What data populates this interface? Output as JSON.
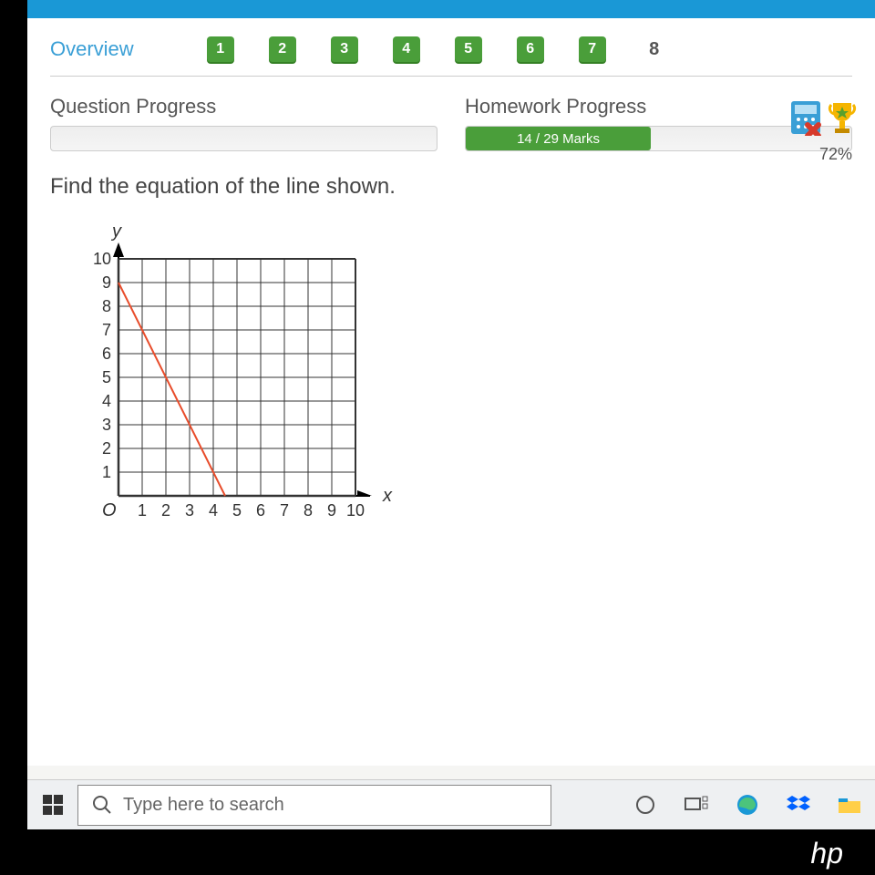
{
  "nav": {
    "overview": "Overview",
    "questions": [
      "1",
      "2",
      "3",
      "4",
      "5",
      "6",
      "7"
    ],
    "current": "8"
  },
  "progress": {
    "question_label": "Question Progress",
    "homework_label": "Homework Progress",
    "marks_text": "14 / 29 Marks",
    "marks_percent": 48,
    "reward_percent": "72%"
  },
  "question": {
    "text": "Find the equation of the line shown."
  },
  "chart": {
    "type": "line",
    "x_label": "x",
    "y_label": "y",
    "origin_label": "O",
    "xlim": [
      0,
      10
    ],
    "ylim": [
      0,
      10
    ],
    "xtick_labels": [
      "1",
      "2",
      "3",
      "4",
      "5",
      "6",
      "7",
      "8",
      "9",
      "10"
    ],
    "ytick_labels": [
      "1",
      "2",
      "3",
      "4",
      "5",
      "6",
      "7",
      "8",
      "9",
      "10"
    ],
    "grid_color": "#333333",
    "background_color": "#ffffff",
    "axis_color": "#000000",
    "line_color": "#e84c2b",
    "line_width": 2,
    "line_points": [
      [
        0,
        9
      ],
      [
        4.5,
        0
      ]
    ],
    "tick_fontsize": 18,
    "label_fontsize": 20
  },
  "taskbar": {
    "search_placeholder": "Type here to search"
  },
  "laptop_brand": "hp"
}
